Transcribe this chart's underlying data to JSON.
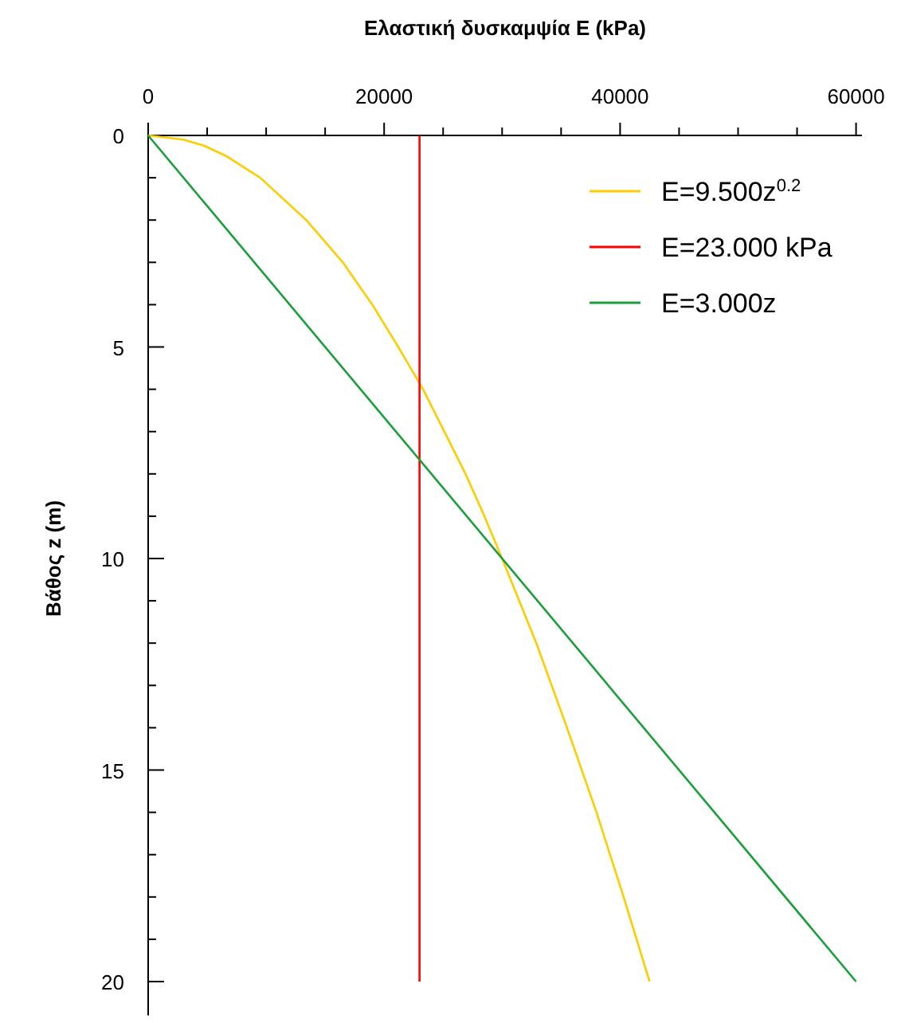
{
  "chart_data": {
    "type": "line",
    "xlabel": "Ελαστική δυσκαμψία E (kPa)",
    "ylabel": "Βάθος z (m)",
    "xlim": [
      0,
      60500
    ],
    "ylim": [
      20.8,
      0
    ],
    "xticks": [
      0,
      {
        "value": 5000,
        "label": null
      },
      {
        "value": 10000,
        "label": null
      },
      {
        "value": 15000,
        "label": null
      },
      20000,
      {
        "value": 25000,
        "label": null
      },
      {
        "value": 30000,
        "label": null
      },
      {
        "value": 35000,
        "label": null
      },
      40000,
      {
        "value": 45000,
        "label": null
      },
      {
        "value": 50000,
        "label": null
      },
      {
        "value": 55000,
        "label": null
      },
      60000
    ],
    "yticks": [
      0,
      {
        "value": 1,
        "label": null
      },
      {
        "value": 2,
        "label": null
      },
      {
        "value": 3,
        "label": null
      },
      {
        "value": 4,
        "label": null
      },
      5,
      {
        "value": 6,
        "label": null
      },
      {
        "value": 7,
        "label": null
      },
      {
        "value": 8,
        "label": null
      },
      {
        "value": 9,
        "label": null
      },
      10,
      {
        "value": 11,
        "label": null
      },
      {
        "value": 12,
        "label": null
      },
      {
        "value": 13,
        "label": null
      },
      {
        "value": 14,
        "label": null
      },
      15,
      {
        "value": 16,
        "label": null
      },
      {
        "value": 17,
        "label": null
      },
      {
        "value": 18,
        "label": null
      },
      {
        "value": 19,
        "label": null
      },
      20
    ],
    "legend": "top right",
    "grid": false,
    "marker": "none",
    "line_style": "solid",
    "series": [
      {
        "name": "E=9.500z$^{0.2}$",
        "color": "#ffcc00",
        "x": [
          0,
          3000,
          4800,
          6700,
          9500,
          13400,
          16500,
          19000,
          21200,
          23300,
          25100,
          26900,
          28500,
          30000,
          32900,
          35500,
          38000,
          40300,
          42500
        ],
        "values": [
          0,
          0.1,
          0.25,
          0.5,
          1,
          2,
          3,
          4,
          5,
          6,
          7,
          8,
          9,
          10,
          12,
          14,
          16,
          18,
          20
        ]
      },
      {
        "name": "E=23.000 kPa",
        "color": "#ff0000",
        "x": [
          23000,
          23000
        ],
        "values": [
          0,
          20
        ]
      },
      {
        "name": "E=3.000z",
        "color": "#1a9e3a",
        "x": [
          0,
          60000
        ],
        "values": [
          0,
          20
        ]
      }
    ]
  }
}
